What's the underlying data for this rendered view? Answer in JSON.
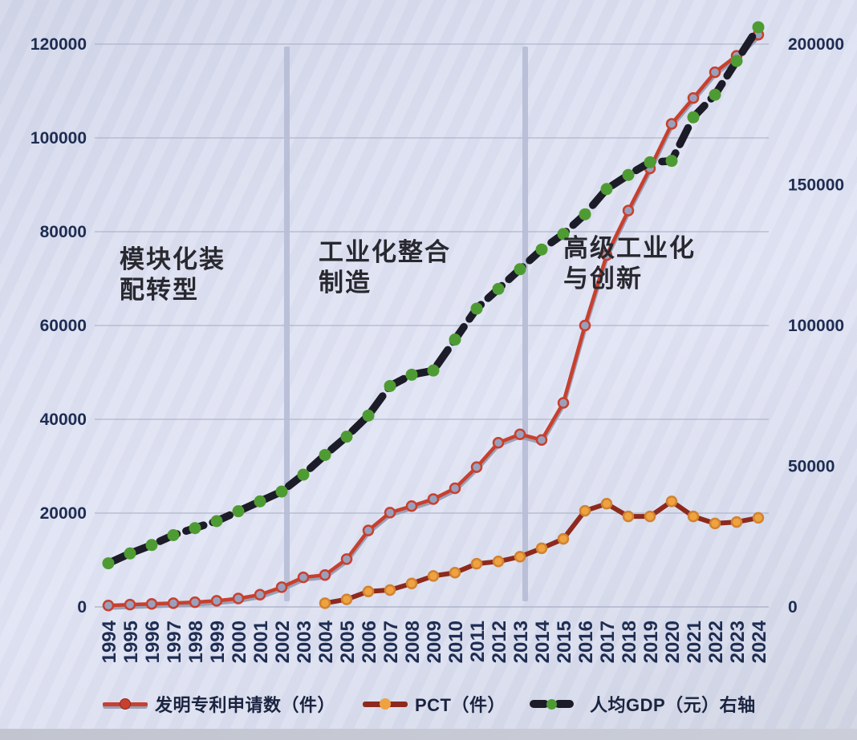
{
  "style": {
    "background": "#dadeee",
    "grid_color": "#a9afc5",
    "axis_text_color": "#1e2d52",
    "phase_text_color": "#28282f",
    "divider_color": "#b7bed6"
  },
  "chart_data": {
    "type": "line",
    "title": "",
    "x_label": "",
    "x_years": [
      "1994",
      "1995",
      "1996",
      "1997",
      "1998",
      "1999",
      "2000",
      "2001",
      "2002",
      "2003",
      "2004",
      "2005",
      "2006",
      "2007",
      "2008",
      "2009",
      "2010",
      "2011",
      "2012",
      "2013",
      "2014",
      "2015",
      "2016",
      "2017",
      "2018",
      "2019",
      "2020",
      "2021",
      "2022",
      "2023",
      "2024"
    ],
    "left_axis": {
      "min": 0,
      "max": 120000,
      "ticks": [
        "0",
        "20000",
        "40000",
        "60000",
        "80000",
        "100000",
        "120000"
      ]
    },
    "right_axis": {
      "min": 0,
      "max": 200000,
      "ticks": [
        "0",
        "50000",
        "100000",
        "150000",
        "200000"
      ]
    },
    "grid": true,
    "legend_position": "bottom",
    "series": [
      {
        "name": "发明专利申请数（件）",
        "axis": "left",
        "color": "#c8402e",
        "underlay_color": "#9aa0b6",
        "marker_fill": "#9aa0bc",
        "marker_stroke": "#c8402e",
        "dashed": false,
        "values": [
          300,
          500,
          650,
          800,
          1000,
          1300,
          1800,
          2600,
          4200,
          6300,
          6800,
          10200,
          16300,
          20100,
          21500,
          23000,
          25300,
          29800,
          35000,
          36800,
          35600,
          43500,
          60000,
          75000,
          84500,
          93500,
          103000,
          108500,
          114000,
          117500,
          122000
        ]
      },
      {
        "name": "PCT（件）",
        "axis": "left",
        "color": "#8e2a1d",
        "underlay_color": null,
        "marker_fill": "#efa23f",
        "marker_stroke": "#d08332",
        "dashed": false,
        "values": [
          null,
          null,
          null,
          null,
          null,
          null,
          null,
          null,
          null,
          null,
          800,
          1600,
          3300,
          3600,
          5000,
          6600,
          7300,
          9200,
          9700,
          10700,
          12500,
          14500,
          20500,
          22000,
          19300,
          19300,
          22500,
          19300,
          17800,
          18100,
          19000
        ]
      },
      {
        "name": "人均GDP（元）右轴",
        "axis": "right",
        "color": "#1c1c28",
        "underlay_color": null,
        "marker_fill": "#4f9b33",
        "marker_stroke": "none",
        "dashed": true,
        "values": [
          15500,
          19000,
          22000,
          25500,
          28000,
          30500,
          34000,
          37500,
          41000,
          47000,
          54000,
          60500,
          68000,
          78500,
          82500,
          84000,
          95000,
          106000,
          113000,
          120000,
          127000,
          132500,
          139500,
          148500,
          153500,
          158000,
          158500,
          174000,
          182000,
          194000,
          206000
        ]
      }
    ],
    "phases": [
      {
        "line1": "模块化装",
        "line2": "配转型"
      },
      {
        "line1": "工业化整合",
        "line2": "制造"
      },
      {
        "line1": "高级工业化",
        "line2": "与创新"
      }
    ],
    "dividers_after_year": [
      "2002",
      "2013"
    ],
    "legend": [
      {
        "label": "发明专利申请数（件）"
      },
      {
        "label": "PCT（件）"
      },
      {
        "label": "人均GDP（元）右轴"
      }
    ]
  }
}
